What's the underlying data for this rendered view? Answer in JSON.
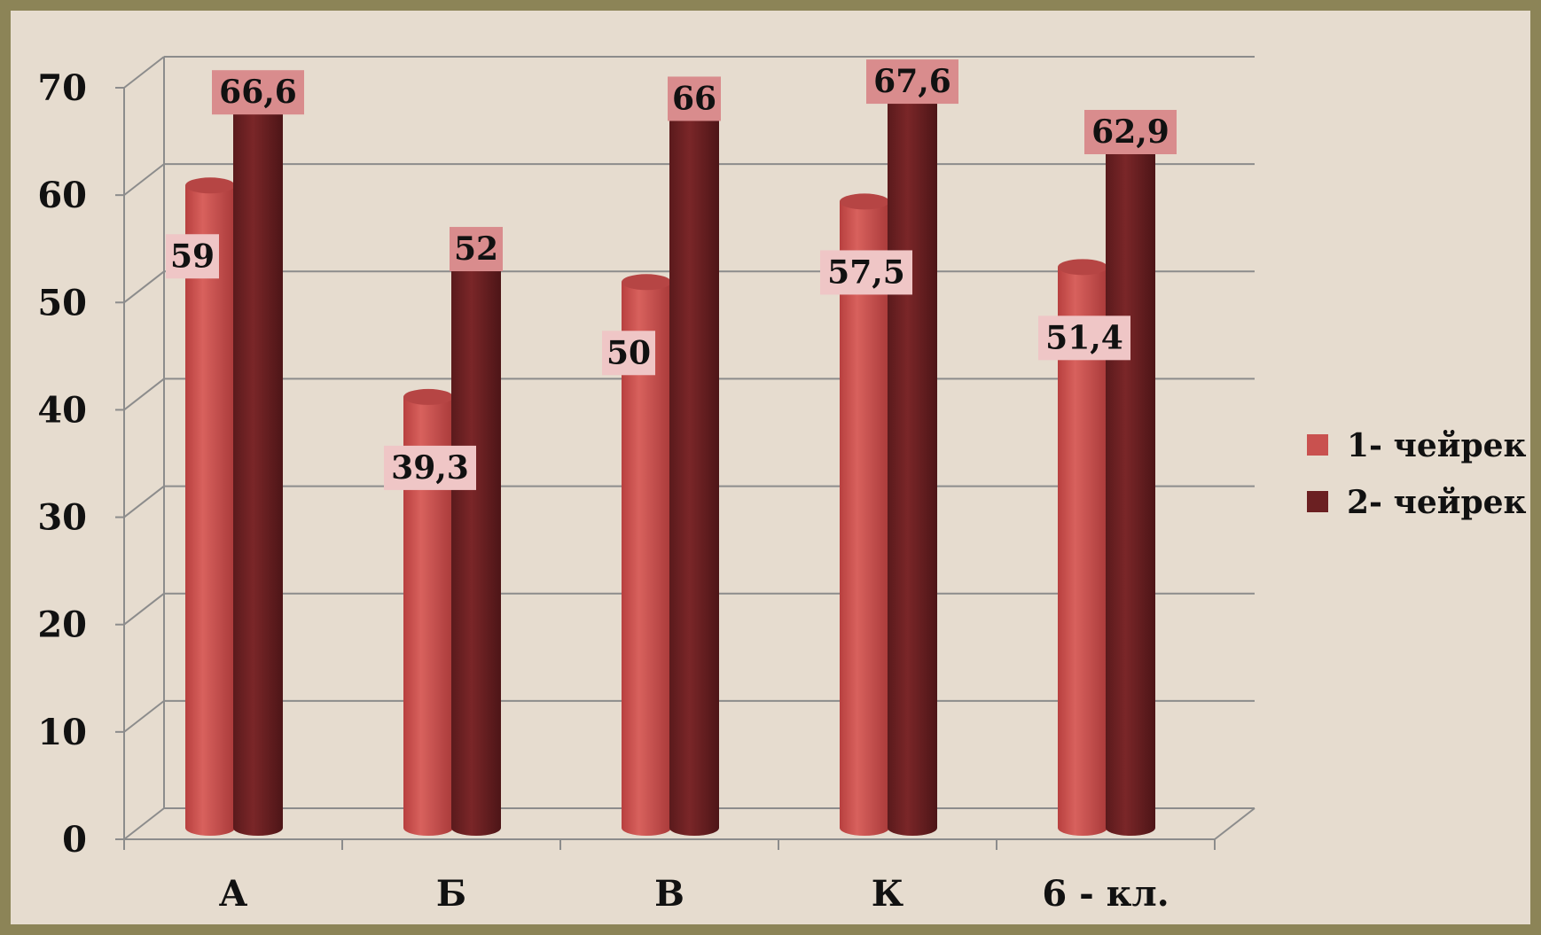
{
  "chart_data": {
    "type": "bar",
    "categories": [
      "А",
      "Б",
      "В",
      "К",
      "6 - кл."
    ],
    "series": [
      {
        "name": "1- чейрек",
        "values": [
          59,
          39.3,
          50,
          57.5,
          51.4
        ],
        "labels": [
          "59",
          "39,3",
          "50",
          "57,5",
          "51,4"
        ],
        "color": "#c9514f"
      },
      {
        "name": "2- чейрек",
        "values": [
          66.6,
          52,
          66,
          67.6,
          62.9
        ],
        "labels": [
          "66,6",
          "52",
          "66",
          "67,6",
          "62,9"
        ],
        "color": "#6b2022"
      }
    ],
    "yticks": [
      "0",
      "10",
      "20",
      "30",
      "40",
      "50",
      "60",
      "70"
    ],
    "ylim": [
      0,
      70
    ],
    "grid": true,
    "legend": "right",
    "style": "3d-cylinder"
  }
}
